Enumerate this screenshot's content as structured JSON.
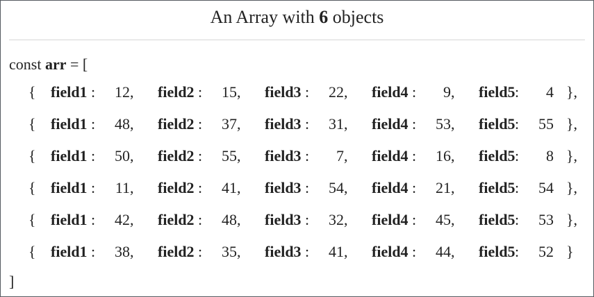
{
  "title": {
    "prefix": "An Array with",
    "count": "6",
    "suffix": "objects"
  },
  "code": {
    "keyword": "const",
    "name": "arr",
    "assign": "= [",
    "close": "]",
    "open_brace": "{",
    "close_brace": "}",
    "colon": ":",
    "comma": ",",
    "field_names": [
      "field1",
      "field2",
      "field3",
      "field4",
      "field5"
    ],
    "rows": [
      {
        "values": [
          "12",
          "15",
          "22",
          "9",
          "4"
        ],
        "end": "},"
      },
      {
        "values": [
          "48",
          "37",
          "31",
          "53",
          "55"
        ],
        "end": "},"
      },
      {
        "values": [
          "50",
          "55",
          "7",
          "16",
          "8"
        ],
        "end": "},"
      },
      {
        "values": [
          "11",
          "41",
          "54",
          "21",
          "54"
        ],
        "end": "},"
      },
      {
        "values": [
          "42",
          "48",
          "32",
          "45",
          "53"
        ],
        "end": "},"
      },
      {
        "values": [
          "38",
          "35",
          "41",
          "44",
          "52"
        ],
        "end": "}"
      }
    ]
  }
}
